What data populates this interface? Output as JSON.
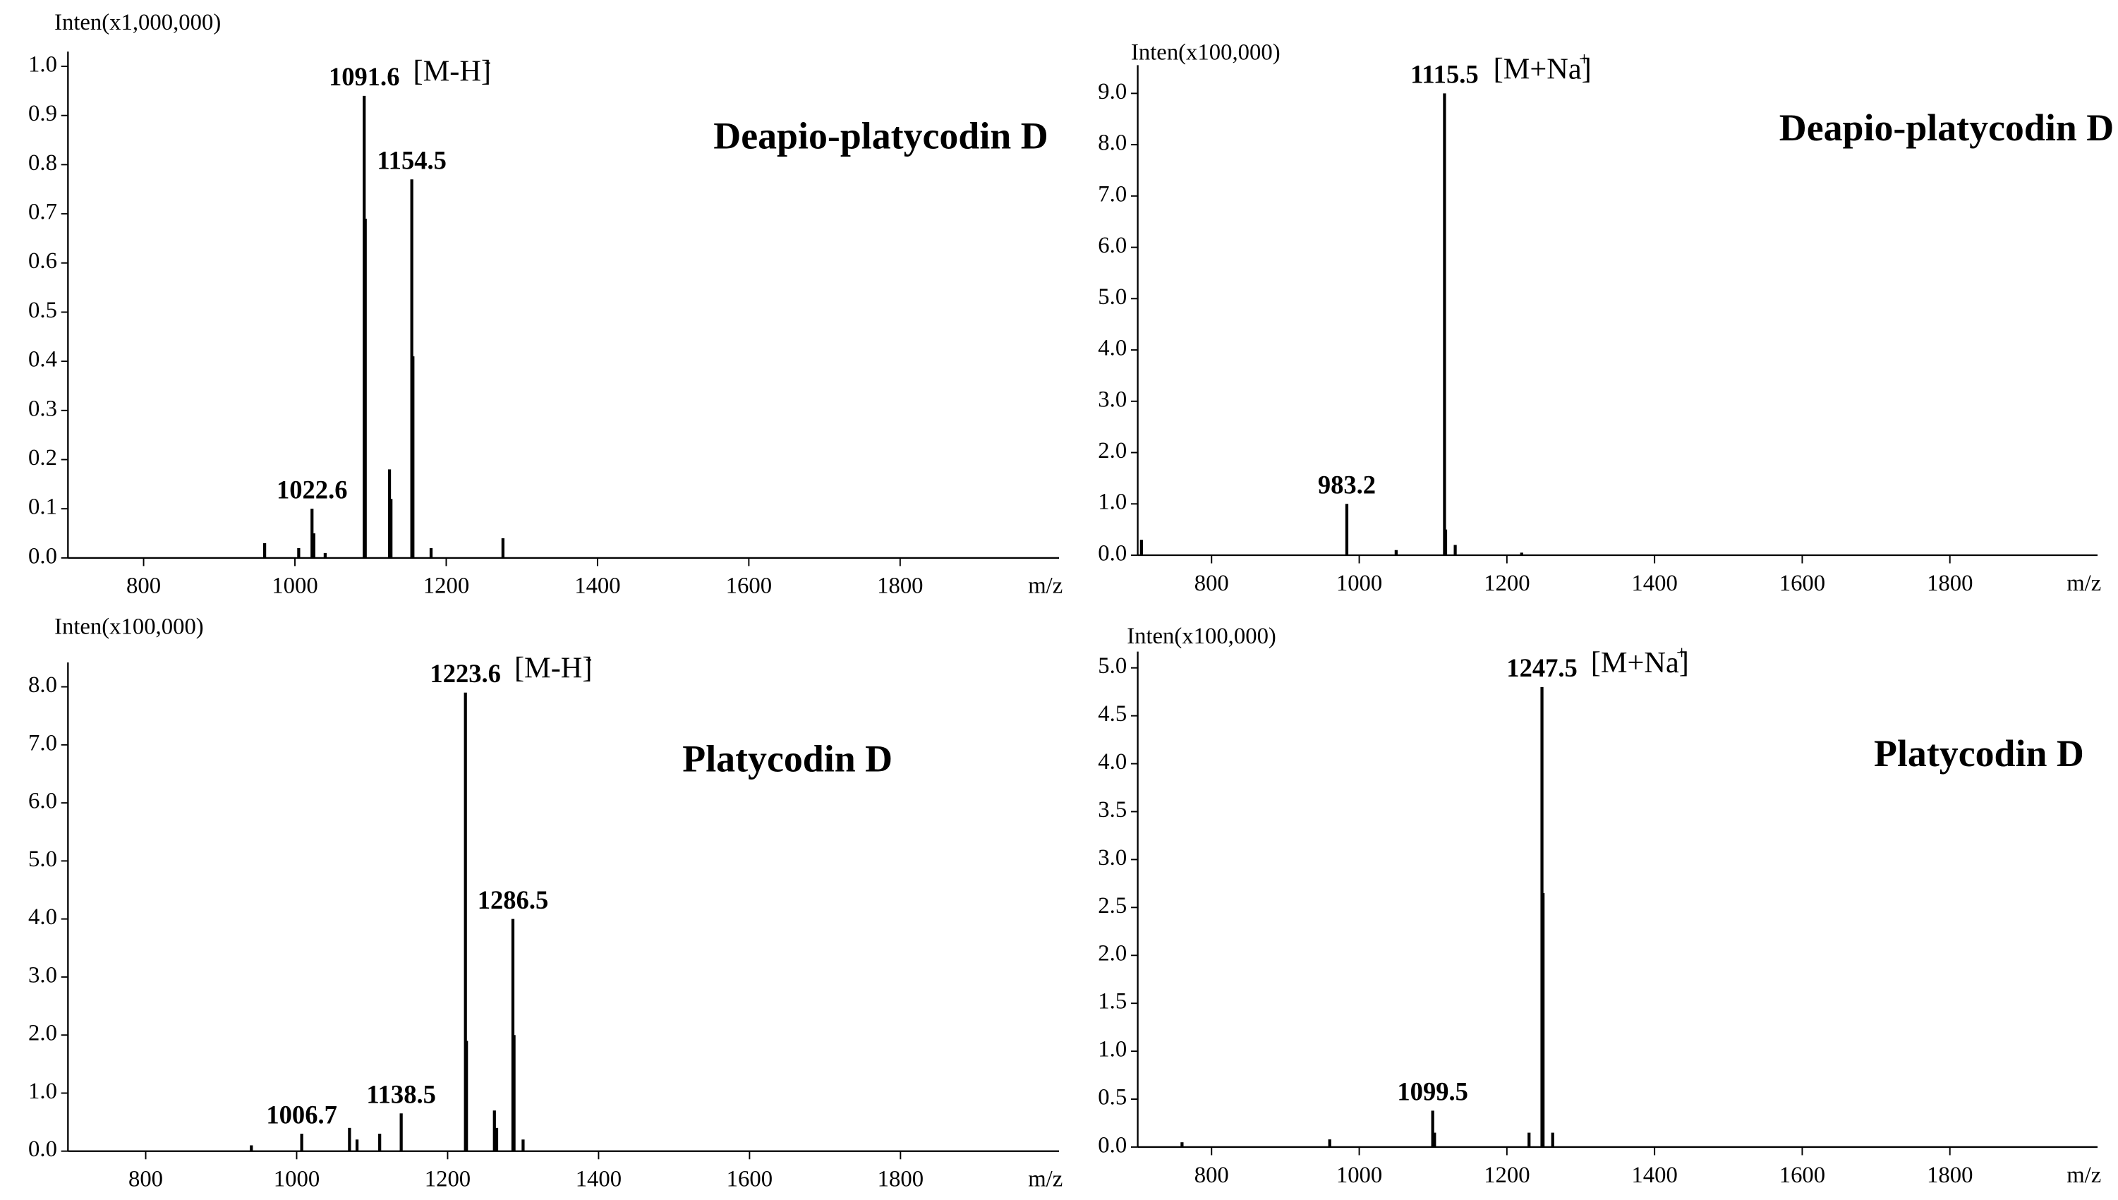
{
  "chart_data": [
    {
      "type": "bar",
      "y_label": "Inten(x1,000,000)",
      "x_label": "m/z",
      "title": "Deapio-platycodin D",
      "annotation": "[M-H]",
      "annotation_sup": "-",
      "x": [
        960,
        1005,
        1022.6,
        1025,
        1040,
        1091.6,
        1093,
        1125,
        1127,
        1154.5,
        1156,
        1180,
        1275
      ],
      "values": [
        0.03,
        0.02,
        0.1,
        0.05,
        0.01,
        0.94,
        0.69,
        0.18,
        0.12,
        0.77,
        0.41,
        0.02,
        0.04
      ],
      "peak_labels": [
        null,
        null,
        "1022.6",
        null,
        null,
        "1091.6",
        null,
        null,
        null,
        "1154.5",
        null,
        null,
        null
      ],
      "color": "#000000",
      "label_color": "#1a1aff",
      "xlim": [
        700,
        2010
      ],
      "ylim": [
        0,
        1.03
      ],
      "xticks": [
        800,
        1000,
        1200,
        1400,
        1600,
        1800
      ],
      "yticks": [
        {
          "value": 0,
          "label": "0.0"
        },
        0.1,
        0.2,
        0.3,
        0.4,
        0.5,
        0.6,
        0.7,
        0.8,
        0.9,
        {
          "value": 1,
          "label": "1.0"
        }
      ]
    },
    {
      "type": "bar",
      "y_label": "Inten(x100,000)",
      "x_label": "m/z",
      "title": "Deapio-platycodin D",
      "annotation": "[M+Na]",
      "annotation_sup": "+",
      "x": [
        705,
        983.2,
        1050,
        1115.5,
        1117,
        1130,
        1220
      ],
      "values": [
        0.3,
        1.0,
        0.1,
        9.0,
        0.5,
        0.2,
        0.05
      ],
      "peak_labels": [
        null,
        "983.2",
        null,
        "1115.5",
        null,
        null,
        null
      ],
      "color": "#000000",
      "label_color": "#1a1aff",
      "xlim": [
        700,
        2000
      ],
      "ylim": [
        0,
        9.55
      ],
      "xticks": [
        800,
        1000,
        1200,
        1400,
        1600,
        1800
      ],
      "yticks": [
        {
          "value": 0,
          "label": "0.0"
        },
        {
          "value": 1,
          "label": "1.0"
        },
        {
          "value": 2,
          "label": "2.0"
        },
        {
          "value": 3,
          "label": "3.0"
        },
        {
          "value": 4,
          "label": "4.0"
        },
        {
          "value": 5,
          "label": "5.0"
        },
        {
          "value": 6,
          "label": "6.0"
        },
        {
          "value": 7,
          "label": "7.0"
        },
        {
          "value": 8,
          "label": "8.0"
        },
        {
          "value": 9,
          "label": "9.0"
        }
      ]
    },
    {
      "type": "bar",
      "y_label": "Inten(x100,000)",
      "x_label": "m/z",
      "title": "Platycodin D",
      "annotation": "[M-H]",
      "annotation_sup": "-",
      "x": [
        940,
        1006.7,
        1070,
        1080,
        1110,
        1138.5,
        1223.6,
        1225,
        1262,
        1265,
        1286.5,
        1288,
        1300
      ],
      "values": [
        0.1,
        0.3,
        0.4,
        0.2,
        0.3,
        0.65,
        7.9,
        1.9,
        0.7,
        0.4,
        4.0,
        2.0,
        0.2
      ],
      "peak_labels": [
        null,
        "1006.7",
        null,
        null,
        null,
        "1138.5",
        "1223.6",
        null,
        null,
        null,
        "1286.5",
        null,
        null
      ],
      "color": "#000000",
      "label_color": "#1a1aff",
      "xlim": [
        697,
        2010
      ],
      "ylim": [
        0,
        8.42
      ],
      "xticks": [
        800,
        1000,
        1200,
        1400,
        1600,
        1800
      ],
      "yticks": [
        {
          "value": 0,
          "label": "0.0"
        },
        {
          "value": 1,
          "label": "1.0"
        },
        {
          "value": 2,
          "label": "2.0"
        },
        {
          "value": 3,
          "label": "3.0"
        },
        {
          "value": 4,
          "label": "4.0"
        },
        {
          "value": 5,
          "label": "5.0"
        },
        {
          "value": 6,
          "label": "6.0"
        },
        {
          "value": 7,
          "label": "7.0"
        },
        {
          "value": 8,
          "label": "8.0"
        }
      ]
    },
    {
      "type": "bar",
      "y_label": "Inten(x100,000)",
      "x_label": "m/z",
      "title": "Platycodin D",
      "annotation": "[M+Na]",
      "annotation_sup": "+",
      "x": [
        760,
        960,
        1099.5,
        1102,
        1230,
        1247.5,
        1249,
        1262
      ],
      "values": [
        0.05,
        0.08,
        0.38,
        0.15,
        0.15,
        4.8,
        2.65,
        0.15
      ],
      "peak_labels": [
        null,
        null,
        "1099.5",
        null,
        null,
        "1247.5",
        null,
        null
      ],
      "color": "#000000",
      "label_color": "#1a1aff",
      "xlim": [
        700,
        2000
      ],
      "ylim": [
        0,
        5.17
      ],
      "xticks": [
        800,
        1000,
        1200,
        1400,
        1600,
        1800
      ],
      "yticks": [
        {
          "value": 0,
          "label": "0.0"
        },
        0.5,
        {
          "value": 1,
          "label": "1.0"
        },
        1.5,
        {
          "value": 2,
          "label": "2.0"
        },
        2.5,
        {
          "value": 3,
          "label": "3.0"
        },
        3.5,
        {
          "value": 4,
          "label": "4.0"
        },
        4.5,
        {
          "value": 5,
          "label": "5.0"
        }
      ]
    }
  ]
}
